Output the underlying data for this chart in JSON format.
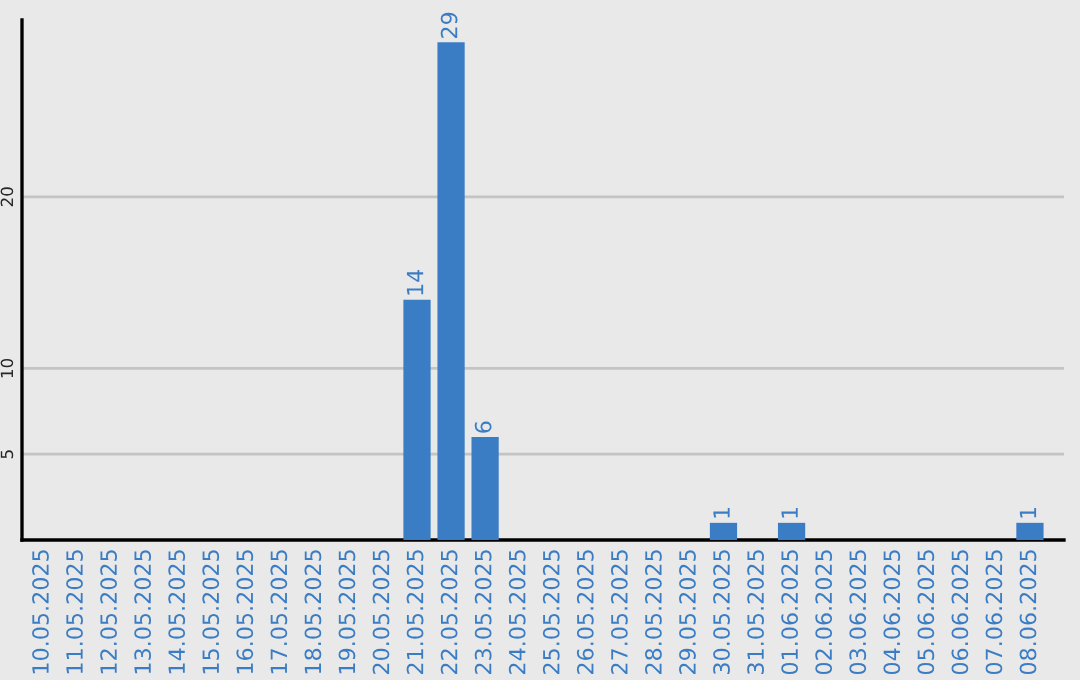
{
  "chart_data": {
    "type": "bar",
    "categories": [
      "10.05.2025",
      "11.05.2025",
      "12.05.2025",
      "13.05.2025",
      "14.05.2025",
      "15.05.2025",
      "16.05.2025",
      "17.05.2025",
      "18.05.2025",
      "19.05.2025",
      "20.05.2025",
      "21.05.2025",
      "22.05.2025",
      "23.05.2025",
      "24.05.2025",
      "25.05.2025",
      "26.05.2025",
      "27.05.2025",
      "28.05.2025",
      "29.05.2025",
      "30.05.2025",
      "31.05.2025",
      "01.06.2025",
      "02.06.2025",
      "03.06.2025",
      "04.06.2025",
      "05.06.2025",
      "06.06.2025",
      "07.06.2025",
      "08.06.2025"
    ],
    "values": [
      0,
      0,
      0,
      0,
      0,
      0,
      0,
      0,
      0,
      0,
      0,
      14,
      29,
      6,
      0,
      0,
      0,
      0,
      0,
      0,
      1,
      0,
      1,
      0,
      0,
      0,
      0,
      0,
      0,
      1
    ],
    "value_labels": [
      null,
      null,
      null,
      null,
      null,
      null,
      null,
      null,
      null,
      null,
      null,
      "14",
      "29",
      "6",
      null,
      null,
      null,
      null,
      null,
      null,
      "1",
      null,
      "1",
      null,
      null,
      null,
      null,
      null,
      null,
      "1"
    ],
    "color": "#3b7dc4",
    "ylim": [
      0,
      30.3
    ],
    "yticks": [
      5,
      10,
      20
    ],
    "grid": "y",
    "legend": false
  }
}
